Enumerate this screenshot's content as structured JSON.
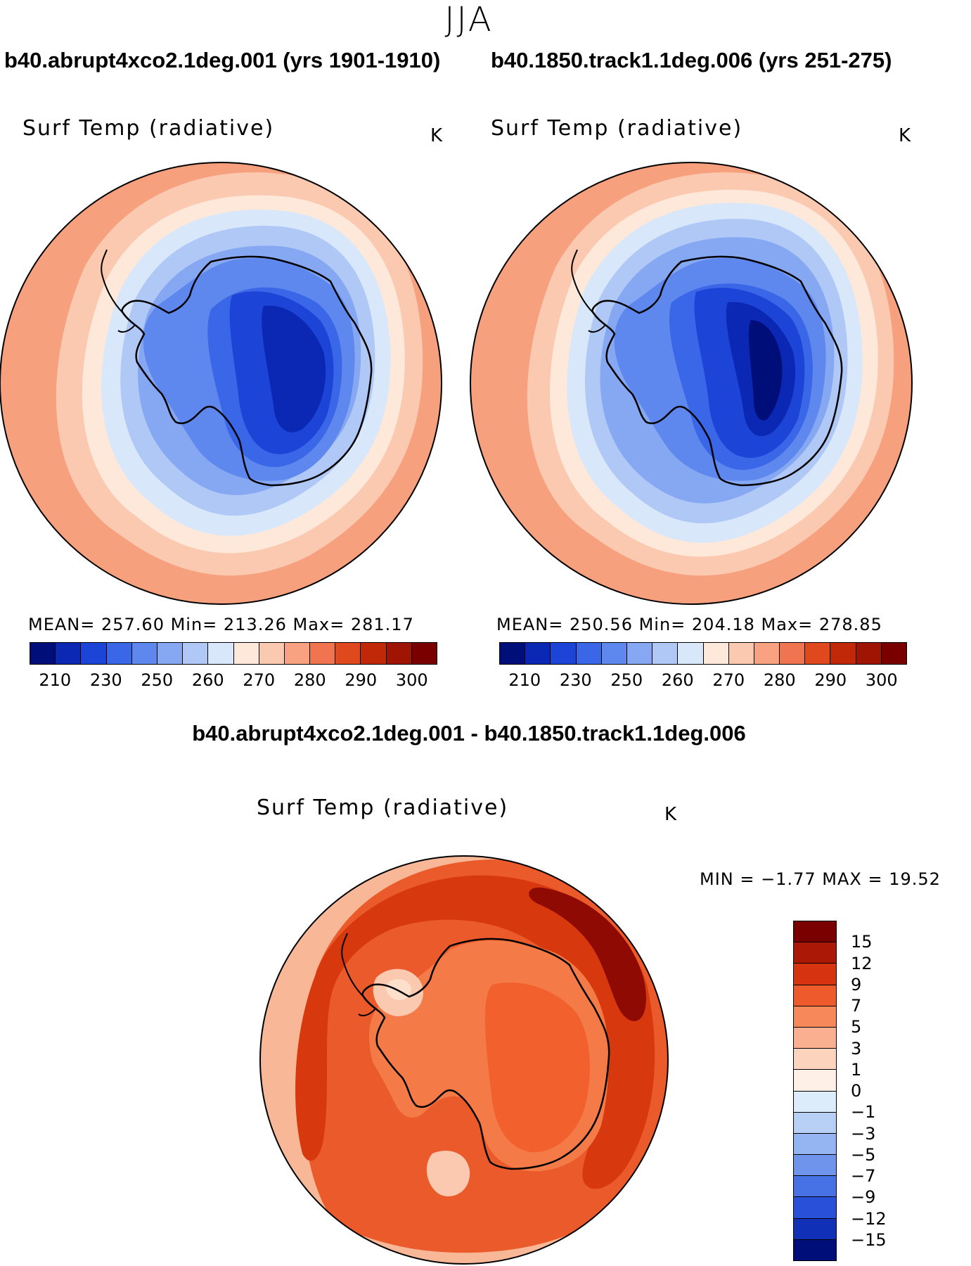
{
  "page": {
    "season": "JJA",
    "diff_title": "b40.abrupt4xco2.1deg.001 - b40.1850.track1.1deg.006"
  },
  "panels": [
    {
      "case_title": "b40.abrupt4xco2.1deg.001 (yrs 1901-1910)",
      "variable": "Surf Temp (radiative)",
      "unit": "K",
      "stats": "MEAN= 257.60   Min= 213.26   Max= 281.17"
    },
    {
      "case_title": "b40.1850.track1.1deg.006 (yrs 251-275)",
      "variable": "Surf Temp (radiative)",
      "unit": "K",
      "stats": "MEAN= 250.56   Min= 204.18   Max= 278.85"
    },
    {
      "variable": "Surf Temp (radiative)",
      "unit": "K",
      "stats": "MIN =   −1.77 MAX =   19.52"
    }
  ],
  "abs_colorbar": {
    "ticks": [
      "210",
      "230",
      "250",
      "260",
      "270",
      "280",
      "290",
      "300"
    ],
    "colors": [
      "#000e7a",
      "#0a28b4",
      "#1c44d6",
      "#3a66e8",
      "#5e88ee",
      "#86a8f2",
      "#b0c8f6",
      "#d8e8fa",
      "#fde8da",
      "#fbc8b0",
      "#f8a282",
      "#f07450",
      "#e0481e",
      "#c02808",
      "#a01404",
      "#7a0000"
    ]
  },
  "diff_colorbar": {
    "ticks": [
      "15",
      "12",
      "9",
      "7",
      "5",
      "3",
      "1",
      "0",
      "−1",
      "−3",
      "−5",
      "−7",
      "−9",
      "−12",
      "−15"
    ],
    "colors": [
      "#7a0000",
      "#ac1806",
      "#d63410",
      "#ee5a2c",
      "#f6885a",
      "#fab090",
      "#fcd4be",
      "#fef0e6",
      "#dcecfa",
      "#b8d0f6",
      "#94b4f2",
      "#6e94ec",
      "#4672e6",
      "#2850d8",
      "#1030b8",
      "#000e7a"
    ]
  },
  "map_colors": {
    "ocean_warm_outer": "#f6a07e",
    "ocean_warm_mid": "#fbc8b0",
    "ocean_neutral": "#fde8da",
    "ice_edge": "#d8e8fa",
    "ice_1": "#b0c8f6",
    "ice_2": "#86a8f2",
    "land_1": "#5e88ee",
    "land_2": "#3a66e8",
    "land_3": "#1c44d6",
    "land_core": "#0a28b4",
    "land_deep": "#000e7a",
    "diff_outer": "#f8b898",
    "diff_ring": "#ea5a2a",
    "diff_band": "#d8380e",
    "diff_max": "#8e0a02",
    "diff_land": "#f47a48",
    "diff_land_core": "#f2602e",
    "diff_pale": "#fbc8b0"
  }
}
